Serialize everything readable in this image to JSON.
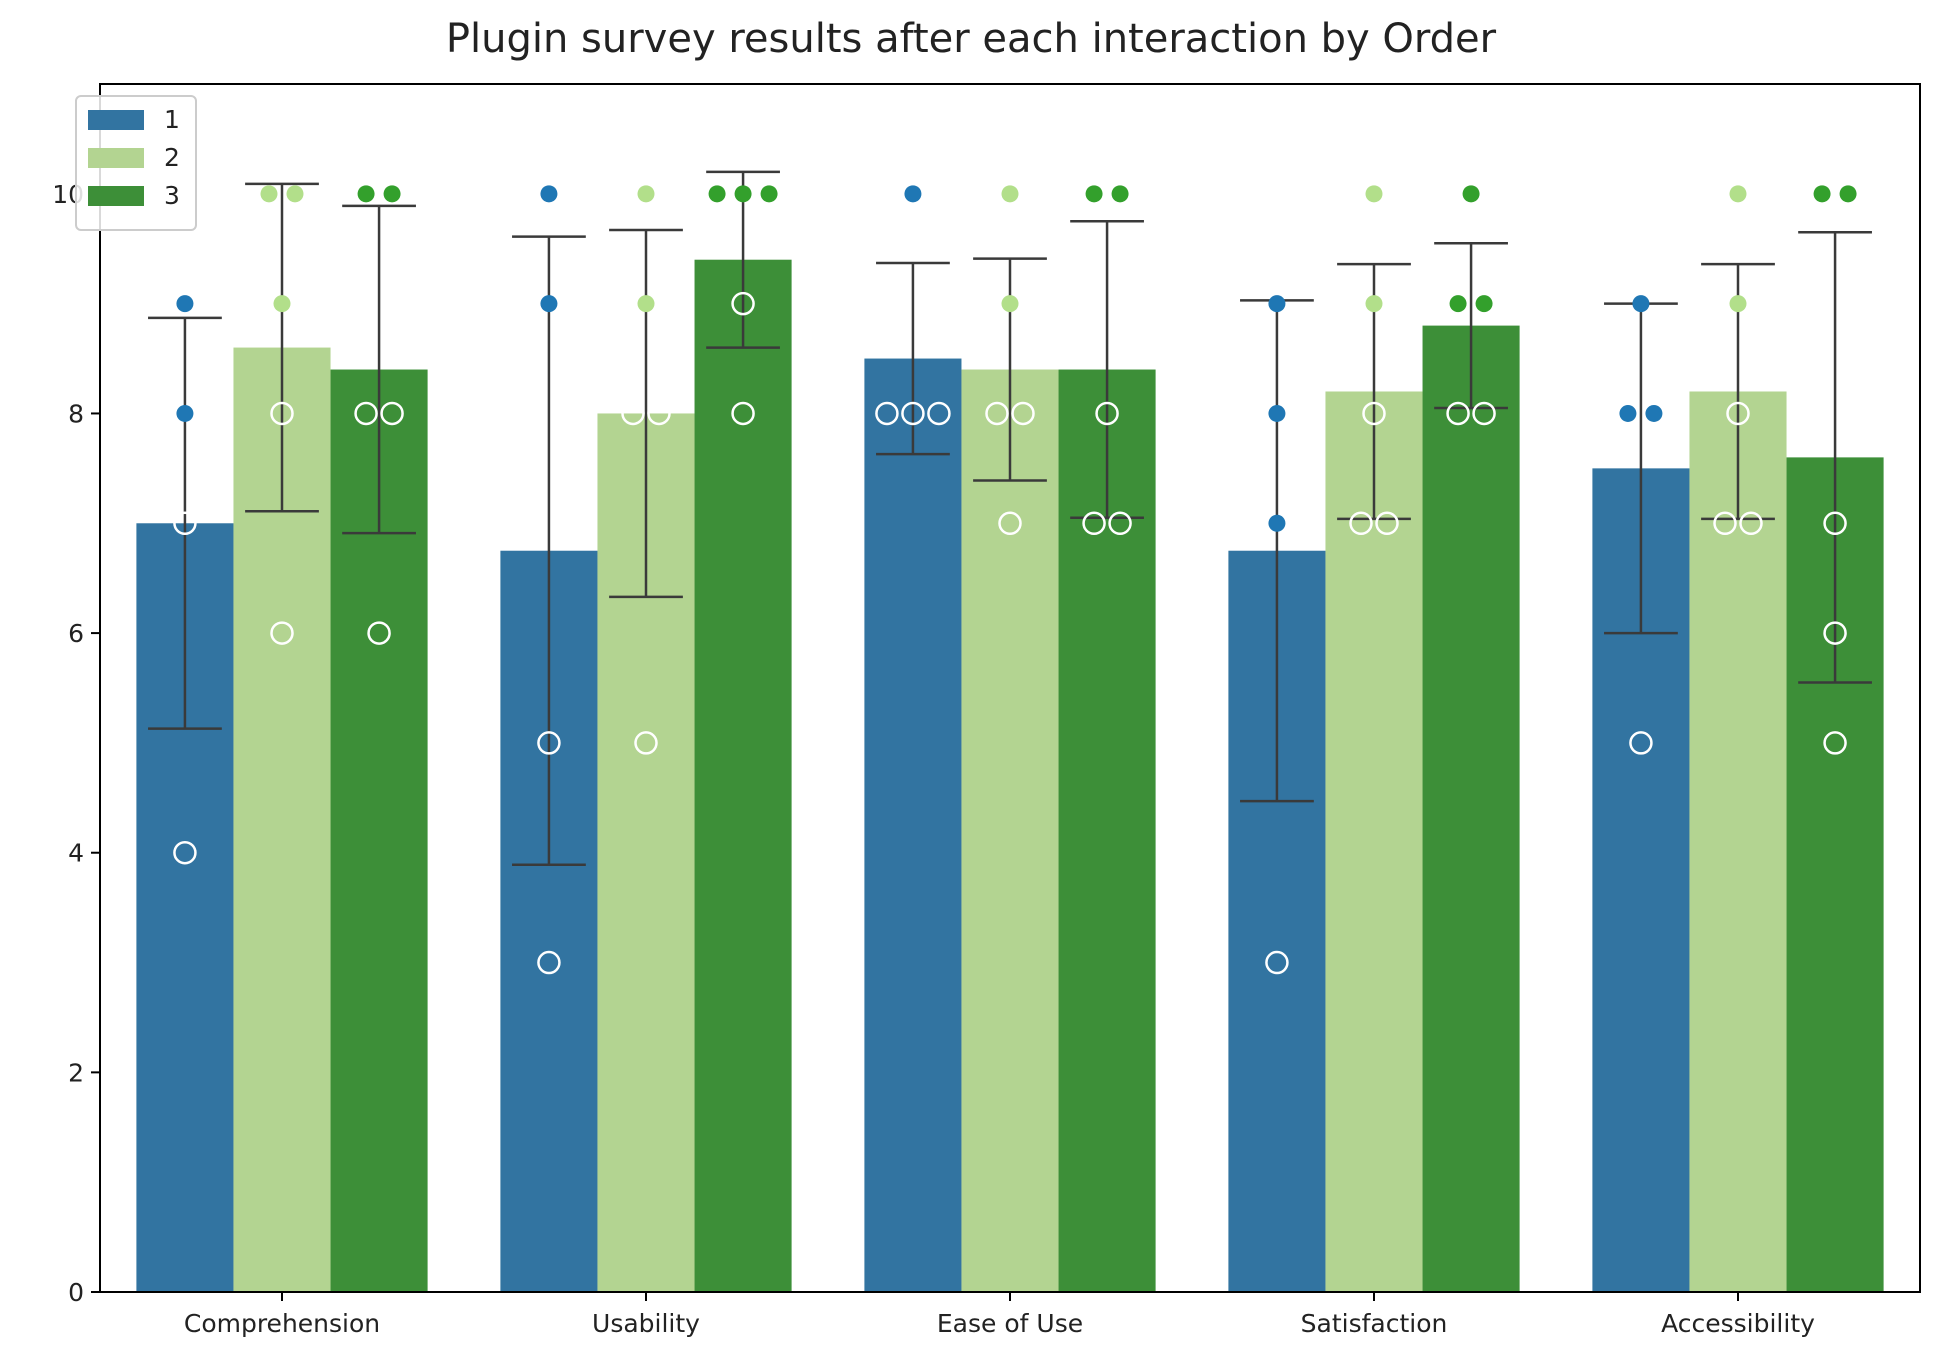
{
  "chart_data": {
    "type": "bar",
    "title": "Plugin survey results after each interaction by Order",
    "xlabel": "",
    "ylabel": "",
    "categories": [
      "Comprehension",
      "Usability",
      "Ease of Use",
      "Satisfaction",
      "Accessibility"
    ],
    "ylim": [
      0,
      11
    ],
    "yticks": [
      0,
      2,
      4,
      6,
      8,
      10
    ],
    "grid": false,
    "legend_position": "top-left",
    "series": [
      {
        "name": "1",
        "color": "#3274a1",
        "point_color": "#1f77b4",
        "values": [
          7.0,
          6.75,
          8.5,
          6.75,
          7.5
        ],
        "error": [
          [
            5.13,
            8.87
          ],
          [
            3.89,
            9.61
          ],
          [
            7.63,
            9.37
          ],
          [
            4.47,
            9.03
          ],
          [
            6.0,
            9.0
          ]
        ],
        "points": [
          [
            9,
            8,
            7,
            4
          ],
          [
            10,
            9,
            5,
            3
          ],
          [
            10,
            8,
            8,
            8
          ],
          [
            9,
            8,
            7,
            3
          ],
          [
            9,
            8,
            8,
            5
          ]
        ]
      },
      {
        "name": "2",
        "color": "#b3d491",
        "point_color": "#b2df8a",
        "values": [
          8.6,
          8.0,
          8.4,
          8.2,
          8.2
        ],
        "error": [
          [
            7.11,
            10.09
          ],
          [
            6.33,
            9.67
          ],
          [
            7.39,
            9.41
          ],
          [
            7.04,
            9.36
          ],
          [
            7.04,
            9.36
          ]
        ],
        "points": [
          [
            10,
            10,
            9,
            8,
            6
          ],
          [
            10,
            9,
            8,
            8,
            5
          ],
          [
            10,
            9,
            8,
            8,
            7
          ],
          [
            10,
            9,
            8,
            7,
            7
          ],
          [
            10,
            9,
            8,
            7,
            7
          ]
        ]
      },
      {
        "name": "3",
        "color": "#3d8f38",
        "point_color": "#33a02c",
        "values": [
          8.4,
          9.4,
          8.4,
          8.8,
          7.6
        ],
        "error": [
          [
            6.91,
            9.89
          ],
          [
            8.6,
            10.2
          ],
          [
            7.05,
            9.75
          ],
          [
            8.05,
            9.55
          ],
          [
            5.55,
            9.65
          ]
        ],
        "points": [
          [
            10,
            10,
            8,
            8,
            6
          ],
          [
            10,
            10,
            10,
            9,
            8
          ],
          [
            10,
            10,
            8,
            7,
            7
          ],
          [
            10,
            9,
            9,
            8,
            8
          ],
          [
            10,
            10,
            7,
            6,
            5
          ]
        ]
      }
    ]
  }
}
